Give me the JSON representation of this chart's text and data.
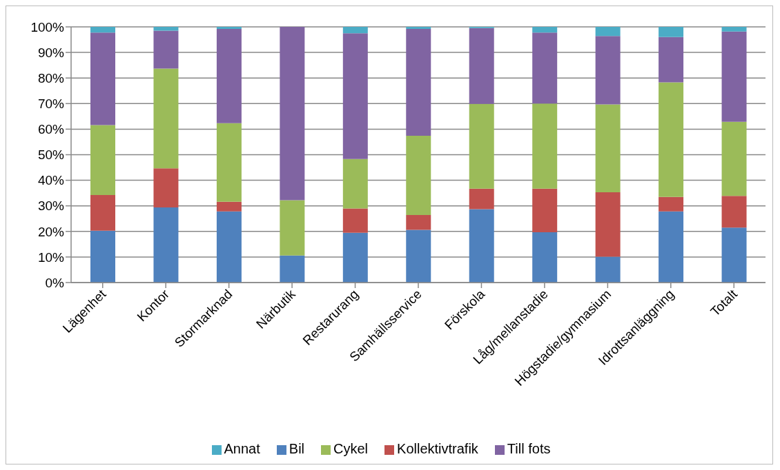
{
  "chart_data": {
    "type": "bar",
    "stacked": true,
    "categories": [
      "Lägenhet",
      "Kontor",
      "Stormarknad",
      "Närbutik",
      "Restarurang",
      "Samhällsservice",
      "Förskola",
      "Låg/mellanstadie",
      "Högstadie/gymnasium",
      "Idrottsanläggning",
      "Totalt"
    ],
    "series": [
      {
        "name": "Bil",
        "color": "#4f81bd",
        "values": [
          20.3,
          29.4,
          27.8,
          10.6,
          19.5,
          20.6,
          28.7,
          19.7,
          10.1,
          27.8,
          21.5
        ]
      },
      {
        "name": "Kollektivtrafik",
        "color": "#c0504d",
        "values": [
          13.9,
          15.3,
          3.8,
          0,
          9.5,
          5.8,
          8,
          17,
          25.2,
          5.7,
          12.4
        ]
      },
      {
        "name": "Cykel",
        "color": "#9bbb59",
        "values": [
          27.4,
          39,
          30.7,
          21.6,
          19.3,
          31,
          33.2,
          33.3,
          34.4,
          44.8,
          29
        ]
      },
      {
        "name": "Till fots",
        "color": "#8064a2",
        "values": [
          36.2,
          14.8,
          36.9,
          67.8,
          49.2,
          41.8,
          29.6,
          27.8,
          26.7,
          17.7,
          35.3
        ]
      },
      {
        "name": "Annat",
        "color": "#4bacc6",
        "values": [
          2.2,
          1.5,
          0.8,
          0,
          2.5,
          0.8,
          0.5,
          2.2,
          3.6,
          4,
          1.8
        ]
      }
    ],
    "ylim": [
      0,
      100
    ],
    "yticks": [
      {
        "value": 0,
        "label": "0%"
      },
      {
        "value": 10,
        "label": "10%"
      },
      {
        "value": 20,
        "label": "20%"
      },
      {
        "value": 30,
        "label": "30%"
      },
      {
        "value": 40,
        "label": "40%"
      },
      {
        "value": 50,
        "label": "50%"
      },
      {
        "value": 60,
        "label": "60%"
      },
      {
        "value": 70,
        "label": "70%"
      },
      {
        "value": 80,
        "label": "80%"
      },
      {
        "value": 90,
        "label": "90%"
      },
      {
        "value": 100,
        "label": "100%"
      }
    ],
    "grid": "y",
    "legend": "bottom"
  }
}
